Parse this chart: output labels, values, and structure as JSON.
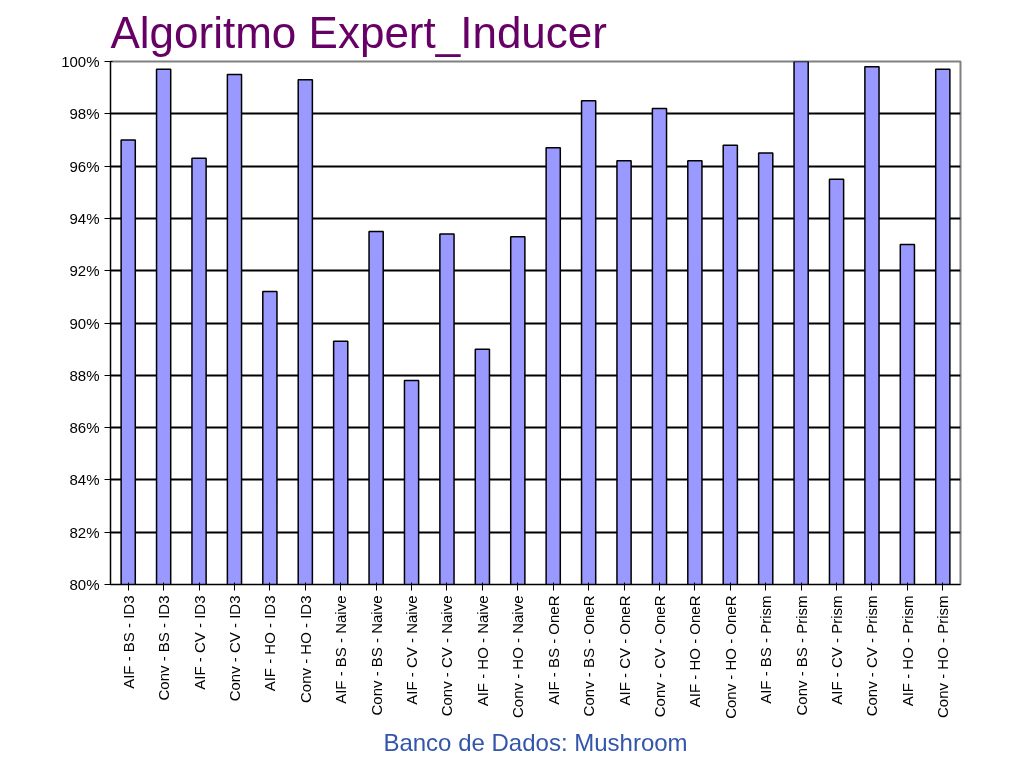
{
  "chart_data": {
    "type": "bar",
    "title": "Algoritmo Expert_Inducer",
    "categories": [
      "AIF - BS - ID3",
      "Conv - BS - ID3",
      "AIF - CV - ID3",
      "Conv - CV - ID3",
      "AIF - HO - ID3",
      "Conv - HO - ID3",
      "AIF - BS - Naive",
      "Conv - BS - Naive",
      "AIF - CV - Naive",
      "Conv - CV - Naive",
      "AIF - HO - Naive",
      "Conv - HO - Naive",
      "AIF - BS - OneR",
      "Conv - BS - OneR",
      "AIF - CV - OneR",
      "Conv - CV - OneR",
      "AIF - HO - OneR",
      "Conv - HO - OneR",
      "AIF - BS - Prism",
      "Conv - BS - Prism",
      "AIF - CV - Prism",
      "Conv - CV - Prism",
      "AIF - HO - Prism",
      "Conv - HO - Prism"
    ],
    "values": [
      97.0,
      99.7,
      96.3,
      99.5,
      91.2,
      99.3,
      89.3,
      93.5,
      87.8,
      93.4,
      89.0,
      93.3,
      96.7,
      98.5,
      96.2,
      98.2,
      96.2,
      96.8,
      96.5,
      100.0,
      95.5,
      99.8,
      93.0,
      99.7
    ],
    "color": "#9999ff",
    "ylim": [
      80,
      100
    ],
    "yticks": [
      {
        "value": 80,
        "label": "80%"
      },
      {
        "value": 82,
        "label": "82%"
      },
      {
        "value": 84,
        "label": "84%"
      },
      {
        "value": 86,
        "label": "86%"
      },
      {
        "value": 88,
        "label": "88%"
      },
      {
        "value": 90,
        "label": "90%"
      },
      {
        "value": 92,
        "label": "92%"
      },
      {
        "value": 94,
        "label": "94%"
      },
      {
        "value": 96,
        "label": "96%"
      },
      {
        "value": 98,
        "label": "98%"
      },
      {
        "value": 100,
        "label": "100%"
      }
    ],
    "grid": "y",
    "annotations": [
      "Banco de Dados: Mushroom"
    ]
  }
}
